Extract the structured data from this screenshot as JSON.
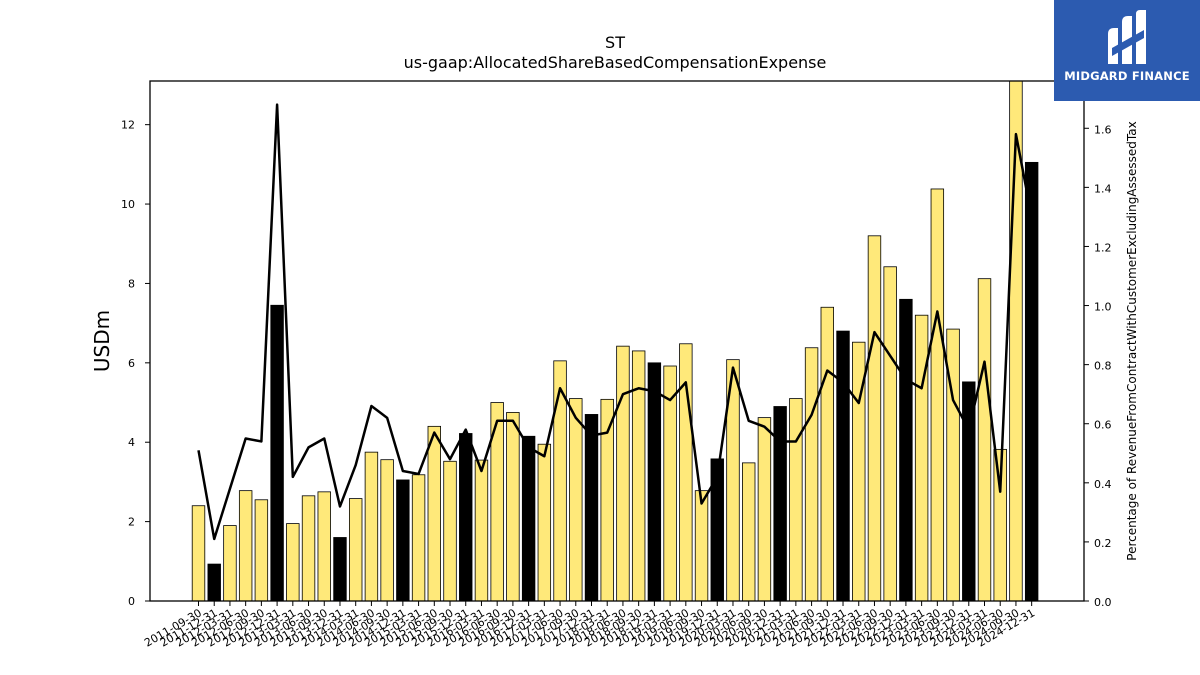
{
  "brand": {
    "name": "MIDGARD FINANCE",
    "logo_color": "#2c5bb0"
  },
  "chart_data": {
    "type": "bar",
    "title": "ST",
    "subtitle": "us-gaap:AllocatedShareBasedCompensationExpense",
    "ylabel": "USDm",
    "ylabel_right": "Percentage of RevenueFromContractWithCustomerExcludingAssessedTax",
    "ylim": [
      0,
      13.1
    ],
    "ylim_right": [
      0,
      1.76
    ],
    "yticks": [
      0,
      2,
      4,
      6,
      8,
      10,
      12
    ],
    "yticks_right": [
      "0.0",
      "0.2",
      "0.4",
      "0.6",
      "0.8",
      "1.0",
      "1.2",
      "1.4",
      "1.6"
    ],
    "colors": {
      "bar": "#ffe97a",
      "bar_q4": "#000000",
      "line": "#000000"
    },
    "categories": [
      "2011-09-30",
      "2011-12-31",
      "2012-03-31",
      "2012-06-30",
      "2012-09-30",
      "2012-12-31",
      "2013-03-31",
      "2013-06-30",
      "2013-09-30",
      "2013-12-31",
      "2014-03-31",
      "2014-06-30",
      "2014-09-30",
      "2014-12-31",
      "2015-03-31",
      "2015-06-30",
      "2015-09-30",
      "2015-12-31",
      "2016-03-31",
      "2016-06-30",
      "2016-09-30",
      "2016-12-31",
      "2017-03-31",
      "2017-06-30",
      "2017-09-30",
      "2017-12-31",
      "2018-03-31",
      "2018-06-30",
      "2018-09-30",
      "2018-12-31",
      "2019-03-31",
      "2019-06-30",
      "2019-09-30",
      "2019-12-31",
      "2020-03-31",
      "2020-06-30",
      "2020-09-30",
      "2020-12-31",
      "2021-03-31",
      "2021-06-30",
      "2021-09-30",
      "2021-12-31",
      "2022-03-31",
      "2022-06-30",
      "2022-09-30",
      "2022-12-31",
      "2023-03-31",
      "2023-06-30",
      "2023-09-30",
      "2023-12-31",
      "2024-03-31",
      "2024-06-30",
      "2024-09-30",
      "2024-12-31"
    ],
    "xtick_labels": [
      "2011-09-30",
      "2011-12-31",
      "2012-03-31",
      "2012-06-30",
      "2012-09-30",
      "2012-12-31",
      "2013-03-31",
      "2013-06-30",
      "2013-09-30",
      "2013-12-31",
      "2014-03-31",
      "2014-06-30",
      "2014-09-30",
      "2014-12-31",
      "2015-03-31",
      "2015-06-30",
      "2015-09-30",
      "2015-12-31",
      "2016-03-31",
      "2016-06-30",
      "2016-09-30",
      "2016-12-31",
      "2017-03-31",
      "2017-06-30",
      "2017-09-30",
      "2017-12-31",
      "2018-03-31",
      "2018-06-30",
      "2018-09-30",
      "2018-12-31",
      "2019-03-31",
      "2019-06-30",
      "2019-09-30",
      "2019-12-31",
      "2020-03-31",
      "2020-06-30",
      "2020-09-30",
      "2020-12-31",
      "2021-03-31",
      "2021-06-30",
      "2021-09-30",
      "2021-12-31",
      "2022-03-31",
      "2022-06-30",
      "2022-09-30",
      "2022-12-31",
      "2023-03-31",
      "2023-06-30",
      "2023-09-30",
      "2023-12-31",
      "2024-03-31",
      "2024-06-30",
      "2024-09-30",
      "2024-12-31"
    ],
    "series": [
      {
        "axis": "left",
        "type": "bar",
        "values": [
          2.4,
          0.93,
          1.9,
          2.78,
          2.55,
          7.45,
          1.95,
          2.65,
          2.75,
          1.6,
          2.58,
          3.75,
          3.56,
          3.05,
          3.18,
          4.4,
          3.52,
          4.22,
          3.55,
          5.0,
          4.75,
          4.15,
          3.95,
          6.05,
          5.1,
          4.7,
          5.08,
          6.42,
          6.3,
          6.0,
          5.92,
          6.48,
          2.78,
          3.58,
          6.08,
          3.48,
          4.62,
          4.9,
          5.1,
          6.38,
          7.4,
          6.8,
          6.52,
          9.2,
          8.42,
          7.6,
          7.2,
          10.38,
          6.85,
          5.52,
          8.12,
          3.82,
          13.1,
          11.05
        ],
        "q4_flags": [
          false,
          true,
          false,
          false,
          false,
          true,
          false,
          false,
          false,
          true,
          false,
          false,
          false,
          true,
          false,
          false,
          false,
          true,
          false,
          false,
          false,
          true,
          false,
          false,
          false,
          true,
          false,
          false,
          false,
          true,
          false,
          false,
          false,
          true,
          false,
          false,
          false,
          true,
          false,
          false,
          false,
          true,
          false,
          false,
          false,
          true,
          false,
          false,
          false,
          true,
          false,
          false,
          false,
          true
        ]
      },
      {
        "axis": "right",
        "type": "line",
        "values": [
          0.51,
          0.21,
          0.38,
          0.55,
          0.54,
          1.68,
          0.42,
          0.52,
          0.55,
          0.32,
          0.46,
          0.66,
          0.62,
          0.44,
          0.43,
          0.57,
          0.48,
          0.58,
          0.44,
          0.61,
          0.61,
          0.52,
          0.49,
          0.72,
          0.62,
          0.56,
          0.57,
          0.7,
          0.72,
          0.71,
          0.68,
          0.74,
          0.33,
          0.42,
          0.79,
          0.61,
          0.59,
          0.54,
          0.54,
          0.63,
          0.78,
          0.74,
          0.67,
          0.91,
          0.83,
          0.75,
          0.72,
          0.98,
          0.68,
          0.58,
          0.81,
          0.37,
          1.58,
          1.3
        ]
      }
    ]
  }
}
